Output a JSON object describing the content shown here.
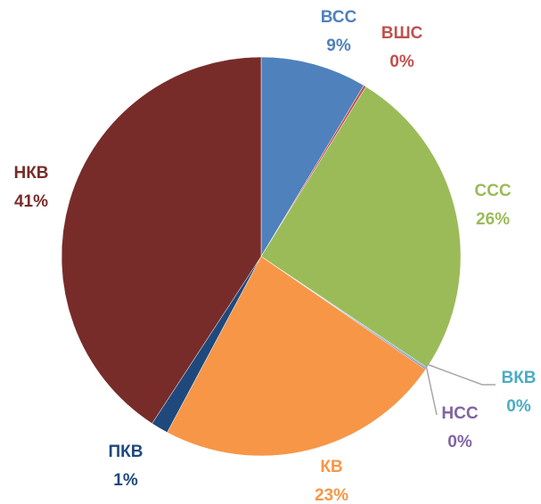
{
  "chart_data": {
    "type": "pie",
    "categories": [
      "ВСС",
      "ВШС",
      "ССС",
      "ВКВ",
      "НСС",
      "КВ",
      "ПКВ",
      "НКВ"
    ],
    "values": [
      8.6,
      0.2,
      25.6,
      0.1,
      0.1,
      23.2,
      1.4,
      40.8
    ],
    "value_labels": [
      "9%",
      "0%",
      "26%",
      "0%",
      "0%",
      "23%",
      "1%",
      "41%"
    ],
    "colors": [
      "#4f81bd",
      "#c0504d",
      "#9bbb59",
      "#4bacc6",
      "#8064a2",
      "#f79646",
      "#1f497d",
      "#772c2a"
    ]
  }
}
